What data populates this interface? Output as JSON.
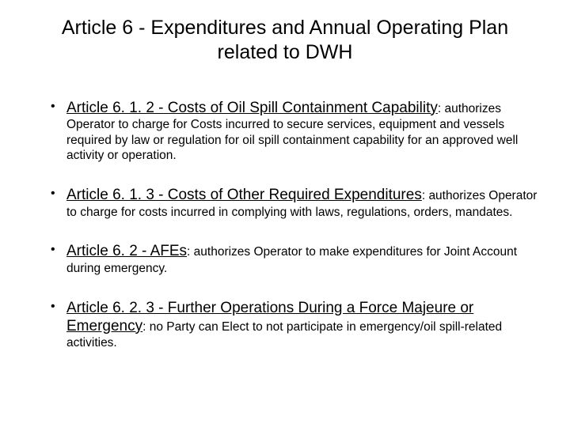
{
  "title": "Article 6 - Expenditures and Annual Operating Plan related to DWH",
  "items": [
    {
      "lead": "Article 6. 1. 2 - Costs of Oil Spill Containment Capability",
      "body": ": authorizes Operator to charge for Costs incurred to secure services, equipment and vessels required by law or regulation for oil spill containment capability for an approved well activity or operation."
    },
    {
      "lead": "Article 6. 1. 3 - Costs of Other Required Expenditures",
      "body": ": authorizes Operator to charge for costs incurred in complying with laws, regulations, orders, mandates."
    },
    {
      "lead": "Article 6. 2 - AFEs",
      "body": ": authorizes Operator to make expenditures for Joint Account during emergency."
    },
    {
      "lead": "Article 6. 2. 3 - Further Operations During a Force Majeure or Emergency",
      "body": ": no Party can Elect to not participate in emergency/oil spill-related activities."
    }
  ],
  "colors": {
    "background": "#ffffff",
    "text": "#000000"
  },
  "typography": {
    "title_fontsize": 25,
    "lead_fontsize": 19,
    "body_fontsize": 15.5,
    "font_family": "Arial"
  }
}
